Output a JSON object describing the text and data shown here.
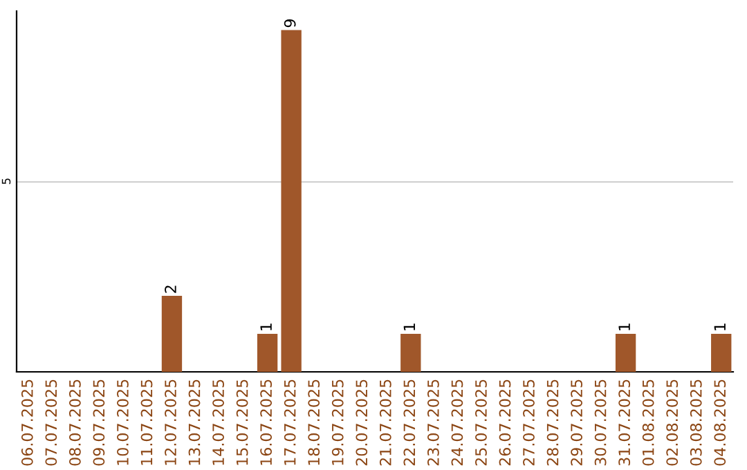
{
  "chart_data": {
    "type": "bar",
    "categories": [
      "06.07.2025",
      "07.07.2025",
      "08.07.2025",
      "09.07.2025",
      "10.07.2025",
      "11.07.2025",
      "12.07.2025",
      "13.07.2025",
      "14.07.2025",
      "15.07.2025",
      "16.07.2025",
      "17.07.2025",
      "18.07.2025",
      "19.07.2025",
      "20.07.2025",
      "21.07.2025",
      "22.07.2025",
      "23.07.2025",
      "24.07.2025",
      "25.07.2025",
      "26.07.2025",
      "27.07.2025",
      "28.07.2025",
      "29.07.2025",
      "30.07.2025",
      "31.07.2025",
      "01.08.2025",
      "02.08.2025",
      "03.08.2025",
      "04.08.2025"
    ],
    "values": [
      0,
      0,
      0,
      0,
      0,
      0,
      2,
      0,
      0,
      0,
      1,
      9,
      0,
      0,
      0,
      0,
      1,
      0,
      0,
      0,
      0,
      0,
      0,
      0,
      0,
      1,
      0,
      0,
      0,
      1
    ],
    "value_labels": [
      null,
      null,
      null,
      null,
      null,
      null,
      "2",
      null,
      null,
      null,
      "1",
      "9",
      null,
      null,
      null,
      null,
      "1",
      null,
      null,
      null,
      null,
      null,
      null,
      null,
      null,
      "1",
      null,
      null,
      null,
      "1"
    ],
    "color": "#a0572a",
    "ylim": [
      0,
      9.5
    ],
    "yticks": [
      5
    ],
    "grid": "y"
  }
}
